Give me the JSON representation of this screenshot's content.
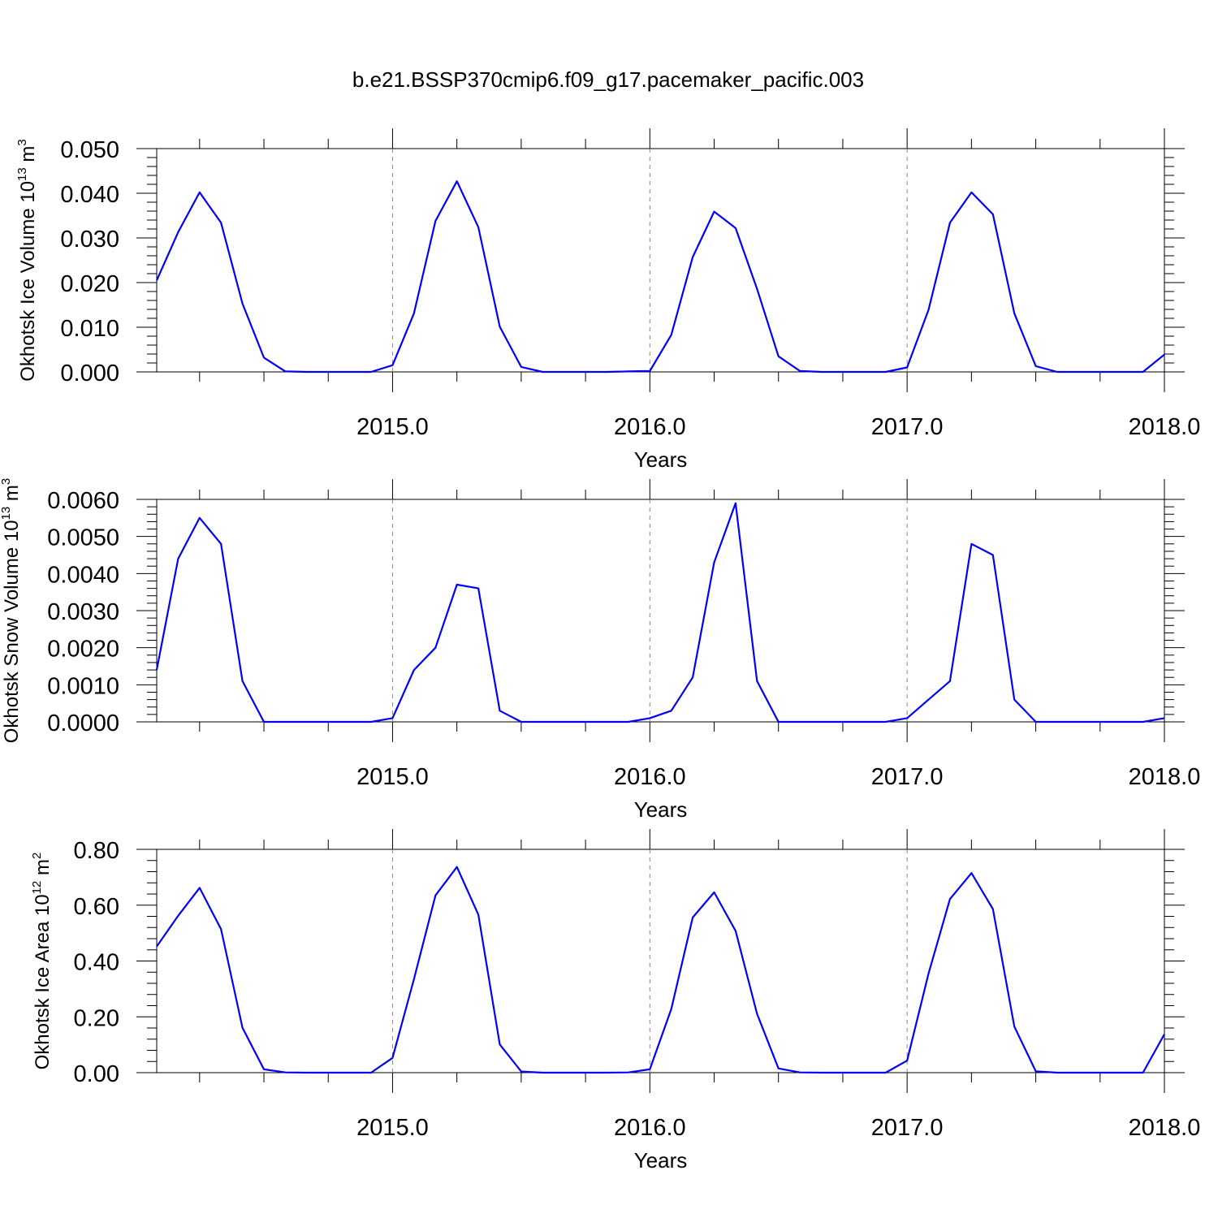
{
  "title": "b.e21.BSSP370cmip6.f09_g17.pacemaker_pacific.003",
  "colors": {
    "series": "#0000ff",
    "axes": "#000000",
    "grid": "#888888"
  },
  "chart_data": [
    {
      "type": "line",
      "title": "b.e21.BSSP370cmip6.f09_g17.pacemaker_pacific.003",
      "xlabel": "Years",
      "ylabel": {
        "prefix": "Okhotsk Ice Volume 10",
        "exponent": "13",
        "unit": " m",
        "unit_exponent": "3"
      },
      "xlim": [
        2014.0833,
        2018.0
      ],
      "ylim": [
        0,
        0.05
      ],
      "x_ticks": [
        2015.0,
        2016.0,
        2017.0,
        2018.0
      ],
      "x_tick_labels": [
        "2015.0",
        "2016.0",
        "2017.0",
        "2018.0"
      ],
      "y_ticks": [
        0,
        0.01,
        0.02,
        0.03,
        0.04,
        0.05
      ],
      "y_tick_labels": [
        "0.000",
        "0.010",
        "0.020",
        "0.030",
        "0.040",
        "0.050"
      ],
      "grid": "vertical dashed at year boundaries",
      "x_start": 2014.0833,
      "x_step": 0.0833333,
      "values": [
        0.0205,
        0.0313,
        0.0402,
        0.0334,
        0.0153,
        0.0032,
        0.0001,
        0,
        0,
        0,
        0,
        0.0015,
        0.0131,
        0.0338,
        0.0427,
        0.0324,
        0.0101,
        0.0011,
        0,
        0,
        0,
        0,
        0.0001,
        0.0002,
        0.0083,
        0.0257,
        0.0359,
        0.0322,
        0.0186,
        0.0035,
        0.0002,
        0,
        0,
        0,
        0,
        0.001,
        0.0139,
        0.0334,
        0.0402,
        0.0353,
        0.0131,
        0.0013,
        0,
        0,
        0,
        0,
        0,
        0.0039
      ]
    },
    {
      "type": "line",
      "title": "",
      "xlabel": "Years",
      "ylabel": {
        "prefix": "Okhotsk Snow Volume 10",
        "exponent": "13",
        "unit": " m",
        "unit_exponent": "3"
      },
      "xlim": [
        2014.0833,
        2018.0
      ],
      "ylim": [
        0,
        0.006
      ],
      "x_ticks": [
        2015.0,
        2016.0,
        2017.0,
        2018.0
      ],
      "x_tick_labels": [
        "2015.0",
        "2016.0",
        "2017.0",
        "2018.0"
      ],
      "y_ticks": [
        0,
        0.001,
        0.002,
        0.003,
        0.004,
        0.005,
        0.006
      ],
      "y_tick_labels": [
        "0.0000",
        "0.0010",
        "0.0020",
        "0.0030",
        "0.0040",
        "0.0050",
        "0.0060"
      ],
      "grid": "vertical dashed at year boundaries",
      "x_start": 2014.0833,
      "x_step": 0.0833333,
      "values": [
        0.0014,
        0.0044,
        0.0055,
        0.0048,
        0.0011,
        0,
        0,
        0,
        0,
        0,
        0,
        0.0001,
        0.0014,
        0.002,
        0.0037,
        0.0036,
        0.0003,
        0,
        0,
        0,
        0,
        0,
        0,
        0.0001,
        0.0003,
        0.0012,
        0.0043,
        0.0059,
        0.0011,
        0,
        0,
        0,
        0,
        0,
        0,
        0.0001,
        0.0006,
        0.0011,
        0.0048,
        0.0045,
        0.0006,
        0,
        0,
        0,
        0,
        0,
        0,
        0.0001
      ]
    },
    {
      "type": "line",
      "title": "",
      "xlabel": "Years",
      "ylabel": {
        "prefix": "Okhotsk Ice Area 10",
        "exponent": "12",
        "unit": " m",
        "unit_exponent": "2"
      },
      "xlim": [
        2014.0833,
        2018.0
      ],
      "ylim": [
        0,
        0.8
      ],
      "x_ticks": [
        2015.0,
        2016.0,
        2017.0,
        2018.0
      ],
      "x_tick_labels": [
        "2015.0",
        "2016.0",
        "2017.0",
        "2018.0"
      ],
      "y_ticks": [
        0,
        0.2,
        0.4,
        0.6,
        0.8
      ],
      "y_tick_labels": [
        "0.00",
        "0.20",
        "0.40",
        "0.60",
        "0.80"
      ],
      "grid": "vertical dashed at year boundaries",
      "x_start": 2014.0833,
      "x_step": 0.0833333,
      "values": [
        0.452,
        0.562,
        0.662,
        0.514,
        0.161,
        0.012,
        0.001,
        0,
        0,
        0,
        0,
        0.053,
        0.335,
        0.635,
        0.737,
        0.566,
        0.101,
        0.004,
        0,
        0,
        0,
        0,
        0.001,
        0.012,
        0.228,
        0.556,
        0.646,
        0.508,
        0.211,
        0.015,
        0.001,
        0,
        0,
        0,
        0,
        0.043,
        0.355,
        0.622,
        0.715,
        0.586,
        0.165,
        0.005,
        0,
        0,
        0,
        0,
        0,
        0.138
      ]
    }
  ]
}
